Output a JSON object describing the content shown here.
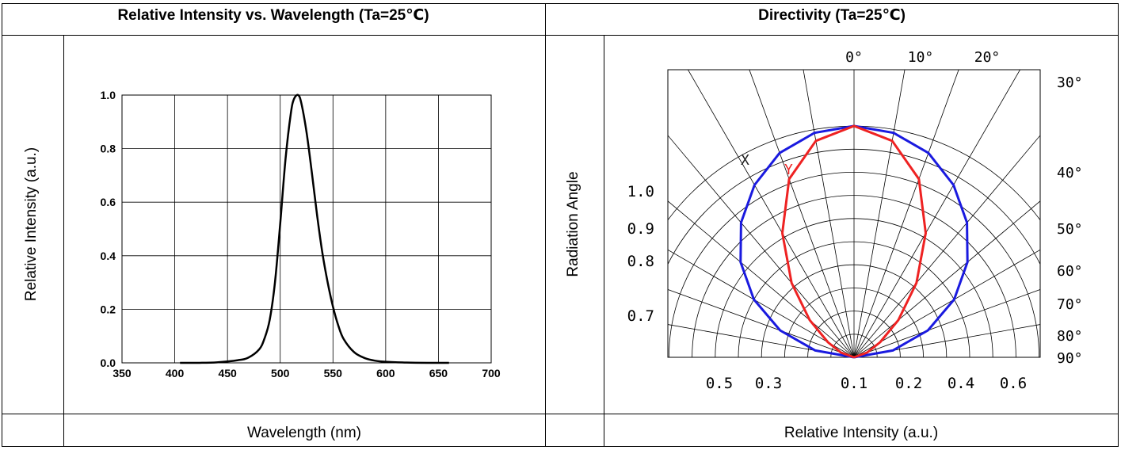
{
  "chart_data": [
    {
      "type": "line",
      "title": "Relative Intensity vs. Wavelength (Ta=25℃)",
      "xlabel": "Wavelength (nm)",
      "ylabel": "Relative Intensity (a.u.)",
      "xlim": [
        350,
        700
      ],
      "ylim": [
        0.0,
        1.0
      ],
      "grid": true,
      "x_ticks": [
        "350",
        "400",
        "450",
        "500",
        "550",
        "600",
        "650",
        "700"
      ],
      "y_ticks": [
        "0.0",
        "0.2",
        "0.4",
        "0.6",
        "0.8",
        "1.0"
      ],
      "series": [
        {
          "color": "#000000",
          "x": [
            405,
            420,
            440,
            460,
            470,
            480,
            485,
            490,
            495,
            500,
            505,
            510,
            513,
            517,
            520,
            525,
            530,
            535,
            540,
            545,
            550,
            555,
            560,
            570,
            580,
            590,
            600,
            620,
            640,
            660
          ],
          "y": [
            0.0,
            0.0,
            0.002,
            0.01,
            0.02,
            0.05,
            0.09,
            0.16,
            0.3,
            0.52,
            0.76,
            0.93,
            0.985,
            1.0,
            0.97,
            0.86,
            0.71,
            0.55,
            0.41,
            0.3,
            0.21,
            0.14,
            0.09,
            0.04,
            0.018,
            0.008,
            0.004,
            0.001,
            0.0,
            0.0
          ]
        }
      ]
    },
    {
      "type": "polar",
      "title": "Directivity (Ta=25℃)",
      "xlabel": "Relative Intensity (a.u.)",
      "ylabel": "Radiation Angle",
      "angle_labels": [
        "0°",
        "10°",
        "20°",
        "30°",
        "40°",
        "50°",
        "60°",
        "70°",
        "80°",
        "90°"
      ],
      "radial_labels_left": [
        "1.0",
        "0.9",
        "0.8",
        "0.7"
      ],
      "bottom_labels": [
        "0.5",
        "0.3",
        "0.1",
        "0.2",
        "0.4",
        "0.6"
      ],
      "series": [
        {
          "name": "X",
          "color": "#1a1adf",
          "angles_deg": [
            -90,
            -80,
            -70,
            -60,
            -50,
            -40,
            -30,
            -20,
            -10,
            0,
            10,
            20,
            30,
            40,
            50,
            60,
            70,
            80,
            90
          ],
          "r": [
            0.0,
            0.17,
            0.34,
            0.5,
            0.64,
            0.76,
            0.86,
            0.94,
            0.985,
            1.0,
            0.985,
            0.94,
            0.86,
            0.76,
            0.64,
            0.5,
            0.34,
            0.17,
            0.0
          ]
        },
        {
          "name": "Y",
          "color": "#ee2222",
          "angles_deg": [
            -90,
            -70,
            -60,
            -50,
            -40,
            -30,
            -20,
            -10,
            0,
            10,
            20,
            30,
            40,
            50,
            60,
            70,
            90
          ],
          "r": [
            0.0,
            0.06,
            0.13,
            0.25,
            0.42,
            0.62,
            0.82,
            0.95,
            1.0,
            0.95,
            0.82,
            0.62,
            0.42,
            0.25,
            0.13,
            0.06,
            0.0
          ]
        }
      ]
    }
  ]
}
